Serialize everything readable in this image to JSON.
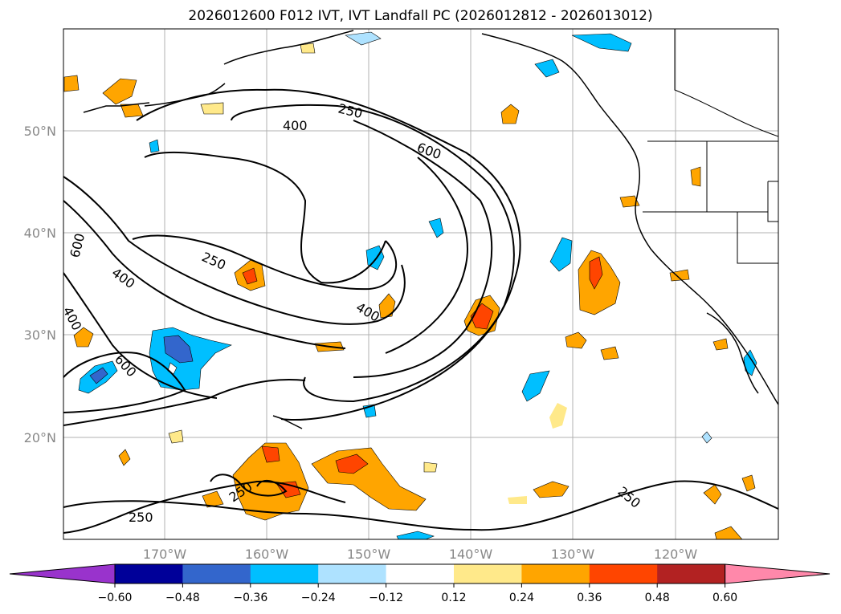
{
  "title": "2026012600 F012 IVT, IVT Landfall PC (2026012812 - 2026013012)",
  "lat_labels": [
    "50°N",
    "40°N",
    "30°N",
    "20°N"
  ],
  "lon_labels": [
    "170°W",
    "160°W",
    "150°W",
    "140°W",
    "130°W",
    "120°W"
  ],
  "contour_labels": [
    {
      "text": "250",
      "id": "n"
    },
    {
      "text": "400",
      "id": "n2"
    },
    {
      "text": "600",
      "id": "n3"
    },
    {
      "text": "600",
      "id": "w"
    },
    {
      "text": "400",
      "id": "w2"
    },
    {
      "text": "400",
      "id": "w3"
    },
    {
      "text": "250",
      "id": "c"
    },
    {
      "text": "400",
      "id": "c2"
    },
    {
      "text": "600",
      "id": "sw"
    },
    {
      "text": "250",
      "id": "s"
    },
    {
      "text": "250",
      "id": "s2"
    },
    {
      "text": "250",
      "id": "se"
    }
  ],
  "colorbar": {
    "colors": [
      "#9933cc",
      "#000099",
      "#3366cc",
      "#00bfff",
      "#aee2ff",
      "#ffffff",
      "#ffe98a",
      "#ffa500",
      "#ff4500",
      "#b22222",
      "#ff88aa"
    ],
    "ticks": [
      "−0.60",
      "−0.48",
      "−0.36",
      "−0.24",
      "−0.12",
      "0.12",
      "0.24",
      "0.36",
      "0.48",
      "0.60"
    ]
  }
}
